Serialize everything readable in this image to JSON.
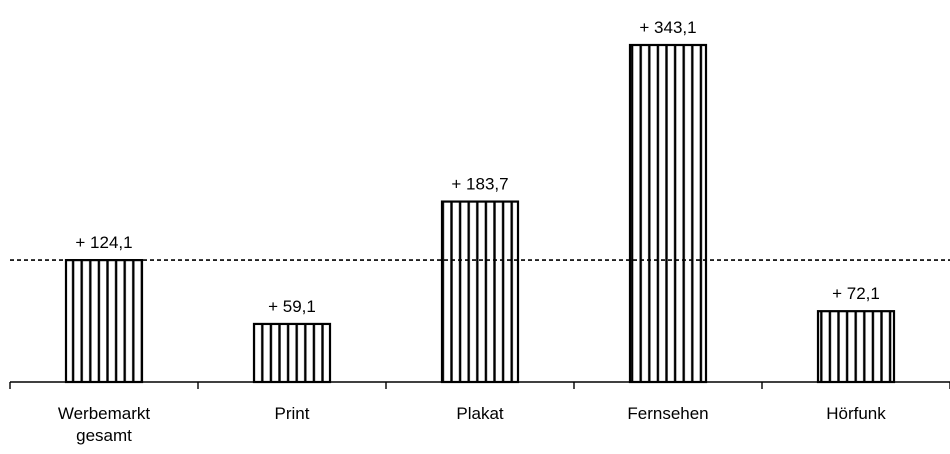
{
  "chart_data": {
    "type": "bar",
    "categories": [
      [
        "Werbemarkt",
        "gesamt"
      ],
      [
        "Print"
      ],
      [
        "Plakat"
      ],
      [
        "Fernsehen"
      ],
      [
        "Hörfunk"
      ]
    ],
    "values": [
      124.1,
      59.1,
      183.7,
      343.1,
      72.1
    ],
    "value_labels": [
      "+ 124,1",
      "+ 59,1",
      "+ 183,7",
      "+ 343,1",
      "+ 72,1"
    ],
    "reference_line": {
      "value": 124.1,
      "style": "dashed"
    },
    "ylim": [
      0,
      343.1
    ],
    "bar_fill": "vertical-hatch",
    "colors": {
      "stroke": "#000000",
      "background": "#ffffff"
    },
    "grid": false,
    "legend": "none"
  }
}
